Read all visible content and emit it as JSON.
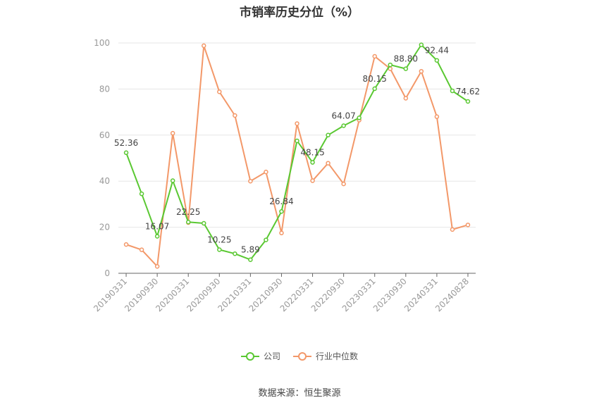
{
  "title": "市销率历史分位（%）",
  "source": "数据来源：恒生聚源",
  "colors": {
    "company": "#5ac832",
    "industry": "#f39869",
    "grid": "#e6e6e6",
    "axis": "#666666",
    "tick": "#999999",
    "label": "#444444"
  },
  "chart_data": {
    "type": "line",
    "title": "市销率历史分位（%）",
    "ylim": [
      0,
      100
    ],
    "yticks": [
      0,
      20,
      40,
      60,
      80,
      100
    ],
    "x": [
      "20190331",
      "20190630",
      "20190930",
      "20191231",
      "20200331",
      "20200630",
      "20200930",
      "20201231",
      "20210331",
      "20210630",
      "20210930",
      "20211231",
      "20220331",
      "20220630",
      "20220930",
      "20221231",
      "20230331",
      "20230630",
      "20230930",
      "20231231",
      "20240331",
      "20240630",
      "20240828"
    ],
    "xtick_labels": [
      "20190331",
      "20190930",
      "20200331",
      "20200930",
      "20210331",
      "20210930",
      "20220331",
      "20220930",
      "20230331",
      "20230930",
      "20240331",
      "20240828"
    ],
    "legend_position": "bottom",
    "series": [
      {
        "name": "公司",
        "values": [
          52.36,
          34.5,
          16.07,
          40.2,
          22.25,
          21.7,
          10.25,
          8.5,
          5.89,
          14.5,
          26.84,
          57.5,
          48.15,
          60.0,
          64.07,
          67.5,
          80.15,
          90.5,
          88.8,
          99.2,
          92.44,
          79.2,
          74.62
        ],
        "labels": [
          "52.36",
          "",
          "16.07",
          "",
          "22.25",
          "",
          "10.25",
          "",
          "5.89",
          "",
          "26.84",
          "",
          "48.15",
          "",
          "64.07",
          "",
          "80.15",
          "",
          "88.80",
          "",
          "92.44",
          "",
          "74.62"
        ]
      },
      {
        "name": "行业中位数",
        "values": [
          12.5,
          10.2,
          3.0,
          60.8,
          22.0,
          98.8,
          78.8,
          68.5,
          40.0,
          44.0,
          17.5,
          65.0,
          40.2,
          47.8,
          38.8,
          66.5,
          94.2,
          88.8,
          76.0,
          87.7,
          68.0,
          19.0,
          21.0
        ],
        "labels": []
      }
    ]
  }
}
